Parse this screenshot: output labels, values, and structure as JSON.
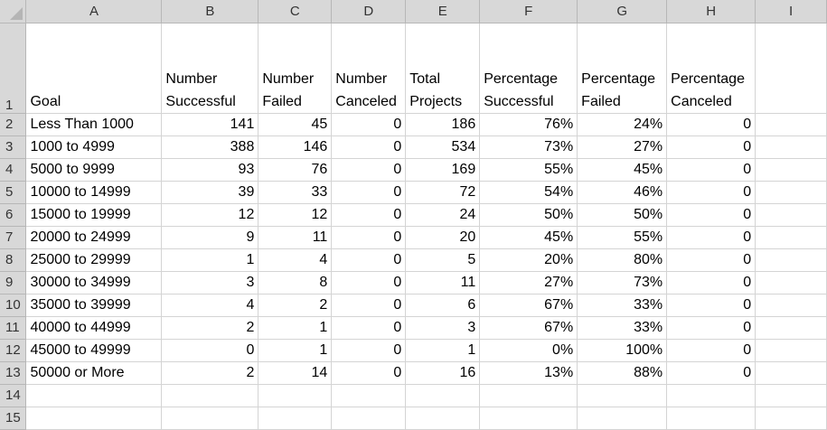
{
  "columns": [
    "A",
    "B",
    "C",
    "D",
    "E",
    "F",
    "G",
    "H",
    "I"
  ],
  "row_numbers": [
    "1",
    "2",
    "3",
    "4",
    "5",
    "6",
    "7",
    "8",
    "9",
    "10",
    "11",
    "12",
    "13",
    "14",
    "15"
  ],
  "header_row": [
    "Goal",
    "Number Successful",
    "Number Failed",
    "Number Canceled",
    "Total Projects",
    "Percentage Successful",
    "Percentage Failed",
    "Percentage Canceled",
    ""
  ],
  "rows": [
    [
      "Less Than 1000",
      "141",
      "45",
      "0",
      "186",
      "76%",
      "24%",
      "0",
      ""
    ],
    [
      "1000 to 4999",
      "388",
      "146",
      "0",
      "534",
      "73%",
      "27%",
      "0",
      ""
    ],
    [
      "5000 to 9999",
      "93",
      "76",
      "0",
      "169",
      "55%",
      "45%",
      "0",
      ""
    ],
    [
      "10000 to 14999",
      "39",
      "33",
      "0",
      "72",
      "54%",
      "46%",
      "0",
      ""
    ],
    [
      "15000 to 19999",
      "12",
      "12",
      "0",
      "24",
      "50%",
      "50%",
      "0",
      ""
    ],
    [
      "20000 to 24999",
      "9",
      "11",
      "0",
      "20",
      "45%",
      "55%",
      "0",
      ""
    ],
    [
      "25000 to 29999",
      "1",
      "4",
      "0",
      "5",
      "20%",
      "80%",
      "0",
      ""
    ],
    [
      "30000 to 34999",
      "3",
      "8",
      "0",
      "11",
      "27%",
      "73%",
      "0",
      ""
    ],
    [
      "35000 to 39999",
      "4",
      "2",
      "0",
      "6",
      "67%",
      "33%",
      "0",
      ""
    ],
    [
      "40000 to 44999",
      "2",
      "1",
      "0",
      "3",
      "67%",
      "33%",
      "0",
      ""
    ],
    [
      "45000 to 49999",
      "0",
      "1",
      "0",
      "1",
      "0%",
      "100%",
      "0",
      ""
    ],
    [
      "50000 or More",
      "2",
      "14",
      "0",
      "16",
      "13%",
      "88%",
      "0",
      ""
    ],
    [
      "",
      "",
      "",
      "",
      "",
      "",
      "",
      "",
      ""
    ],
    [
      "",
      "",
      "",
      "",
      "",
      "",
      "",
      "",
      ""
    ]
  ]
}
